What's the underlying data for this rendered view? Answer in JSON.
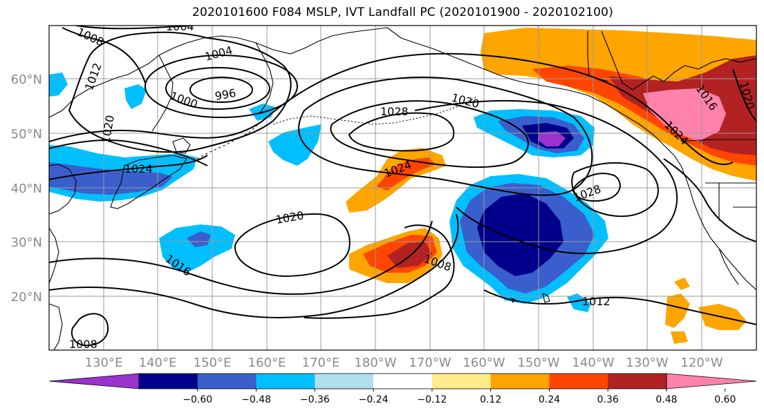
{
  "title": "2020101600 F084 MSLP, IVT Landfall PC (2020101900 - 2020102100)",
  "map": {
    "lat_labels": [
      "60°N",
      "50°N",
      "40°N",
      "30°N",
      "20°N"
    ],
    "lon_labels": [
      "130°E",
      "140°E",
      "150°E",
      "160°E",
      "170°E",
      "180°W",
      "170°W",
      "160°W",
      "150°W",
      "140°W",
      "130°W",
      "120°W"
    ],
    "contour_labels": [
      {
        "text": "1004",
        "field": "MSLP"
      },
      {
        "text": "1004",
        "field": "MSLP"
      },
      {
        "text": "1008",
        "field": "MSLP"
      },
      {
        "text": "1012",
        "field": "MSLP"
      },
      {
        "text": "1000",
        "field": "MSLP"
      },
      {
        "text": "996",
        "field": "MSLP"
      },
      {
        "text": "1020",
        "field": "MSLP"
      },
      {
        "text": "1024",
        "field": "MSLP"
      },
      {
        "text": "1028",
        "field": "MSLP"
      },
      {
        "text": "1020",
        "field": "MSLP"
      },
      {
        "text": "1024",
        "field": "MSLP"
      },
      {
        "text": "1028",
        "field": "MSLP"
      },
      {
        "text": "1020",
        "field": "MSLP"
      },
      {
        "text": "1016",
        "field": "MSLP"
      },
      {
        "text": "1008",
        "field": "MSLP"
      },
      {
        "text": "1012",
        "field": "MSLP"
      },
      {
        "text": "1016",
        "field": "MSLP"
      },
      {
        "text": "1020",
        "field": "MSLP"
      },
      {
        "text": "1024",
        "field": "MSLP"
      },
      {
        "text": "1008",
        "field": "MSLP"
      }
    ]
  },
  "colorbar": {
    "colors": [
      "#9a32cd",
      "#00008b",
      "#3a5fcd",
      "#00bfff",
      "#b2dfee",
      "#ffffff",
      "#ffec8b",
      "#ffa500",
      "#ff4500",
      "#b22222",
      "#ff82ab"
    ],
    "ticks": [
      "-0.60",
      "-0.48",
      "-0.36",
      "-0.24",
      "-0.12",
      "0.12",
      "0.24",
      "0.36",
      "0.48",
      "0.60"
    ]
  }
}
